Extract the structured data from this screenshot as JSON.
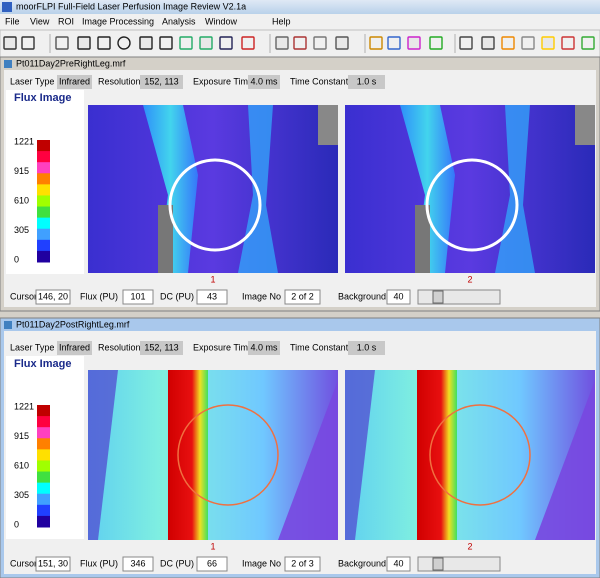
{
  "app": {
    "title": "moorFLPI Full-Field Laser Perfusion Image Review V2.1a",
    "menu": [
      "File",
      "View",
      "ROI",
      "Image Processing",
      "Analysis",
      "Window",
      "Help"
    ]
  },
  "windows": [
    {
      "title": "Pt011Day2PreRightLeg.mrf",
      "info": [
        {
          "label": "Laser Type",
          "value": "Infrared"
        },
        {
          "label": "Resolution",
          "value": "152, 113"
        },
        {
          "label": "Exposure Time",
          "value": "4.0 ms"
        },
        {
          "label": "Time Constant",
          "value": "1.0 s"
        }
      ],
      "legend_title": "Flux Image",
      "scale_labels": [
        "1221",
        "915",
        "610",
        "305",
        "0"
      ],
      "image_labels": [
        "1",
        "2"
      ],
      "status": [
        {
          "label": "Cursor",
          "value": "146, 20"
        },
        {
          "label": "Flux (PU)",
          "value": "101"
        },
        {
          "label": "DC (PU)",
          "value": "43"
        },
        {
          "label": "Image No",
          "value": "2 of 2"
        },
        {
          "label": "Background",
          "value": "40"
        }
      ]
    },
    {
      "title": "Pt011Day2PostRightLeg.mrf",
      "info": [
        {
          "label": "Laser Type",
          "value": "Infrared"
        },
        {
          "label": "Resolution",
          "value": "152, 113"
        },
        {
          "label": "Exposure Time",
          "value": "4.0 ms"
        },
        {
          "label": "Time Constant",
          "value": "1.0 s"
        }
      ],
      "legend_title": "Flux Image",
      "scale_labels": [
        "1221",
        "915",
        "610",
        "305",
        "0"
      ],
      "image_labels": [
        "1",
        "2"
      ],
      "status": [
        {
          "label": "Cursor",
          "value": "151, 30"
        },
        {
          "label": "Flux (PU)",
          "value": "346"
        },
        {
          "label": "DC (PU)",
          "value": "66"
        },
        {
          "label": "Image No",
          "value": "2 of 3"
        },
        {
          "label": "Background",
          "value": "40"
        }
      ]
    }
  ]
}
